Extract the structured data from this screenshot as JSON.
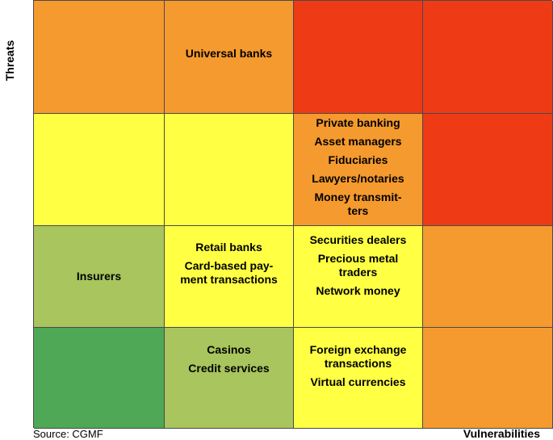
{
  "axes": {
    "y_label": "Threats",
    "x_label": "Vulnerabilities"
  },
  "source": "Source: CGMF",
  "colors": {
    "red": "#ee3b16",
    "orange": "#f59a2e",
    "yellow": "#ffff44",
    "light_green": "#a8c55e",
    "green": "#4ea855"
  },
  "matrix": [
    {
      "row": "threat-4",
      "cells": [
        {
          "color": "orange",
          "items": []
        },
        {
          "color": "orange",
          "items": [
            "Universal banks"
          ]
        },
        {
          "color": "red",
          "items": []
        },
        {
          "color": "red",
          "items": []
        }
      ]
    },
    {
      "row": "threat-3",
      "cells": [
        {
          "color": "yellow",
          "items": []
        },
        {
          "color": "yellow",
          "items": []
        },
        {
          "color": "orange",
          "items": [
            "Private banking",
            "Asset managers",
            "Fiduciaries",
            "Lawyers/notaries",
            "Money transmit-ters"
          ]
        },
        {
          "color": "red",
          "items": []
        }
      ]
    },
    {
      "row": "threat-2",
      "cells": [
        {
          "color": "light_green",
          "items": [
            "Insurers"
          ]
        },
        {
          "color": "yellow",
          "items": [
            "Retail banks",
            "Card-based pay-ment transactions"
          ]
        },
        {
          "color": "yellow",
          "items": [
            "Securities dealers",
            "Precious metal traders",
            "Network money"
          ]
        },
        {
          "color": "orange",
          "items": []
        }
      ]
    },
    {
      "row": "threat-1",
      "cells": [
        {
          "color": "green",
          "items": []
        },
        {
          "color": "light_green",
          "items": [
            "Casinos",
            "Credit services"
          ]
        },
        {
          "color": "yellow",
          "items": [
            "Foreign exchange transactions",
            "Virtual currencies"
          ]
        },
        {
          "color": "orange",
          "items": []
        }
      ]
    }
  ]
}
